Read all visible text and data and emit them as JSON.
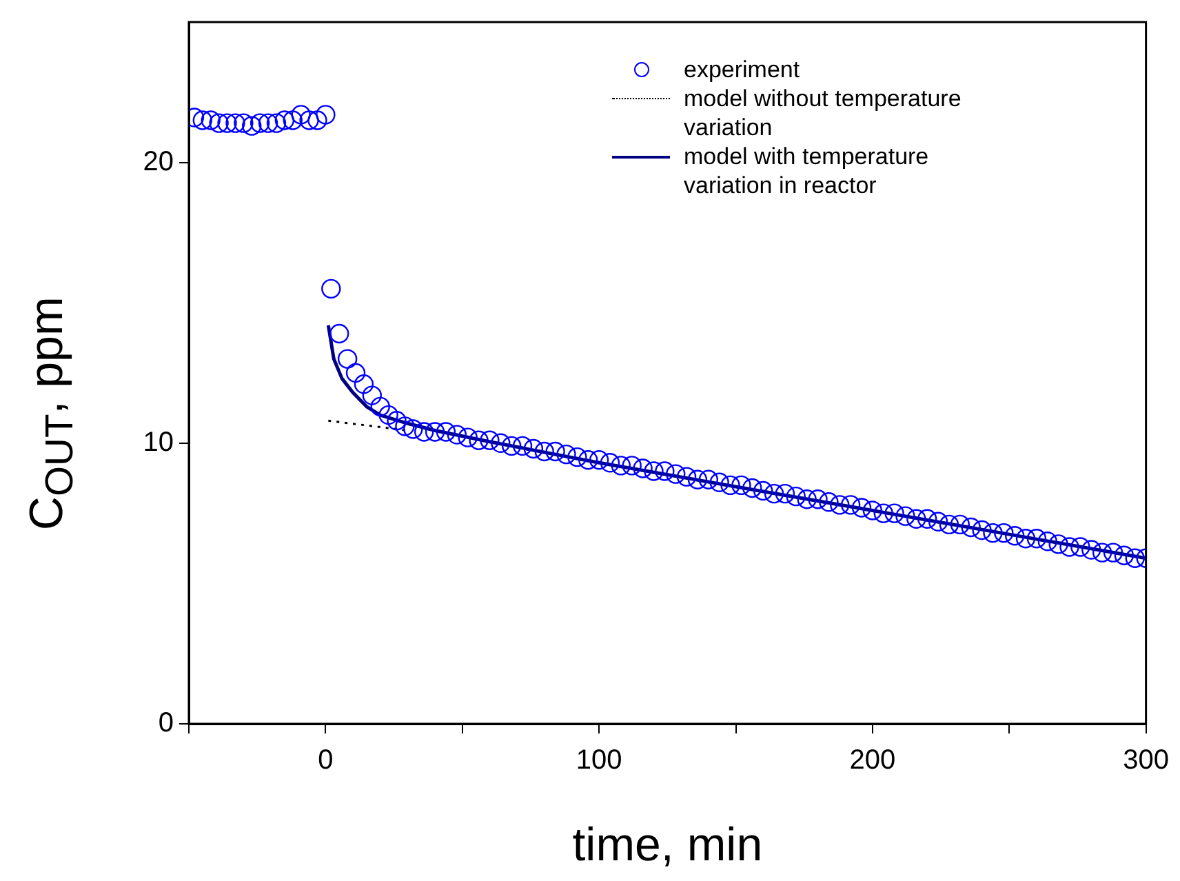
{
  "chart_data": {
    "type": "scatter",
    "xlabel": "time, min",
    "ylabel": "C$_{OUT}$, ppm",
    "xlim": [
      -50,
      300
    ],
    "ylim": [
      0,
      25
    ],
    "xticks": [
      {
        "value": -50,
        "label": null
      },
      0,
      {
        "value": 50,
        "label": null
      },
      100,
      {
        "value": 150,
        "label": null
      },
      200,
      {
        "value": 250,
        "label": null
      },
      300
    ],
    "yticks": [
      0,
      10,
      20
    ],
    "grid": false,
    "legend": "top right",
    "series": [
      {
        "name": "experiment",
        "type": "scatter",
        "color": "#0000ff",
        "marker": "circle",
        "x": [
          -48,
          -45,
          -42,
          -39,
          -36,
          -33,
          -30,
          -27,
          -24,
          -21,
          -18,
          -15,
          -12,
          -9,
          -6,
          -3,
          0,
          2,
          5,
          8,
          11,
          14,
          17,
          20,
          23,
          26,
          29,
          32,
          36,
          40,
          44,
          48,
          52,
          56,
          60,
          64,
          68,
          72,
          76,
          80,
          84,
          88,
          92,
          96,
          100,
          104,
          108,
          112,
          116,
          120,
          124,
          128,
          132,
          136,
          140,
          144,
          148,
          152,
          156,
          160,
          164,
          168,
          172,
          176,
          180,
          184,
          188,
          192,
          196,
          200,
          204,
          208,
          212,
          216,
          220,
          224,
          228,
          232,
          236,
          240,
          244,
          248,
          252,
          256,
          260,
          264,
          268,
          272,
          276,
          280,
          284,
          288,
          292,
          296,
          300
        ],
        "values": [
          21.6,
          21.5,
          21.5,
          21.4,
          21.4,
          21.4,
          21.4,
          21.3,
          21.4,
          21.4,
          21.4,
          21.5,
          21.5,
          21.7,
          21.5,
          21.5,
          21.7,
          15.5,
          13.9,
          13.0,
          12.5,
          12.1,
          11.7,
          11.3,
          11.0,
          10.8,
          10.6,
          10.5,
          10.4,
          10.4,
          10.4,
          10.3,
          10.2,
          10.1,
          10.1,
          10.0,
          9.9,
          9.9,
          9.8,
          9.7,
          9.7,
          9.6,
          9.5,
          9.4,
          9.4,
          9.3,
          9.2,
          9.2,
          9.1,
          9.0,
          9.0,
          8.9,
          8.8,
          8.7,
          8.7,
          8.6,
          8.5,
          8.5,
          8.4,
          8.3,
          8.2,
          8.2,
          8.1,
          8.0,
          8.0,
          7.9,
          7.8,
          7.8,
          7.7,
          7.6,
          7.5,
          7.5,
          7.4,
          7.3,
          7.3,
          7.2,
          7.1,
          7.1,
          7.0,
          6.9,
          6.8,
          6.8,
          6.7,
          6.6,
          6.6,
          6.5,
          6.4,
          6.3,
          6.3,
          6.2,
          6.1,
          6.1,
          6.0,
          5.9,
          5.9
        ]
      },
      {
        "name": "model without temperature variation",
        "type": "line",
        "color": "#000000",
        "line_style": "dotted",
        "marker": "none",
        "x": [
          1,
          30
        ],
        "values": [
          10.8,
          10.45
        ]
      },
      {
        "name": "model with temperature variation in reactor",
        "type": "line",
        "color": "#000080",
        "line_style": "solid",
        "marker": "none",
        "x": [
          1,
          3,
          6,
          10,
          15,
          20,
          30,
          40,
          60,
          100,
          150,
          200,
          250,
          300
        ],
        "values": [
          14.2,
          13.0,
          12.3,
          11.8,
          11.3,
          11.0,
          10.7,
          10.45,
          10.05,
          9.3,
          8.45,
          7.6,
          6.75,
          5.9
        ]
      }
    ]
  }
}
